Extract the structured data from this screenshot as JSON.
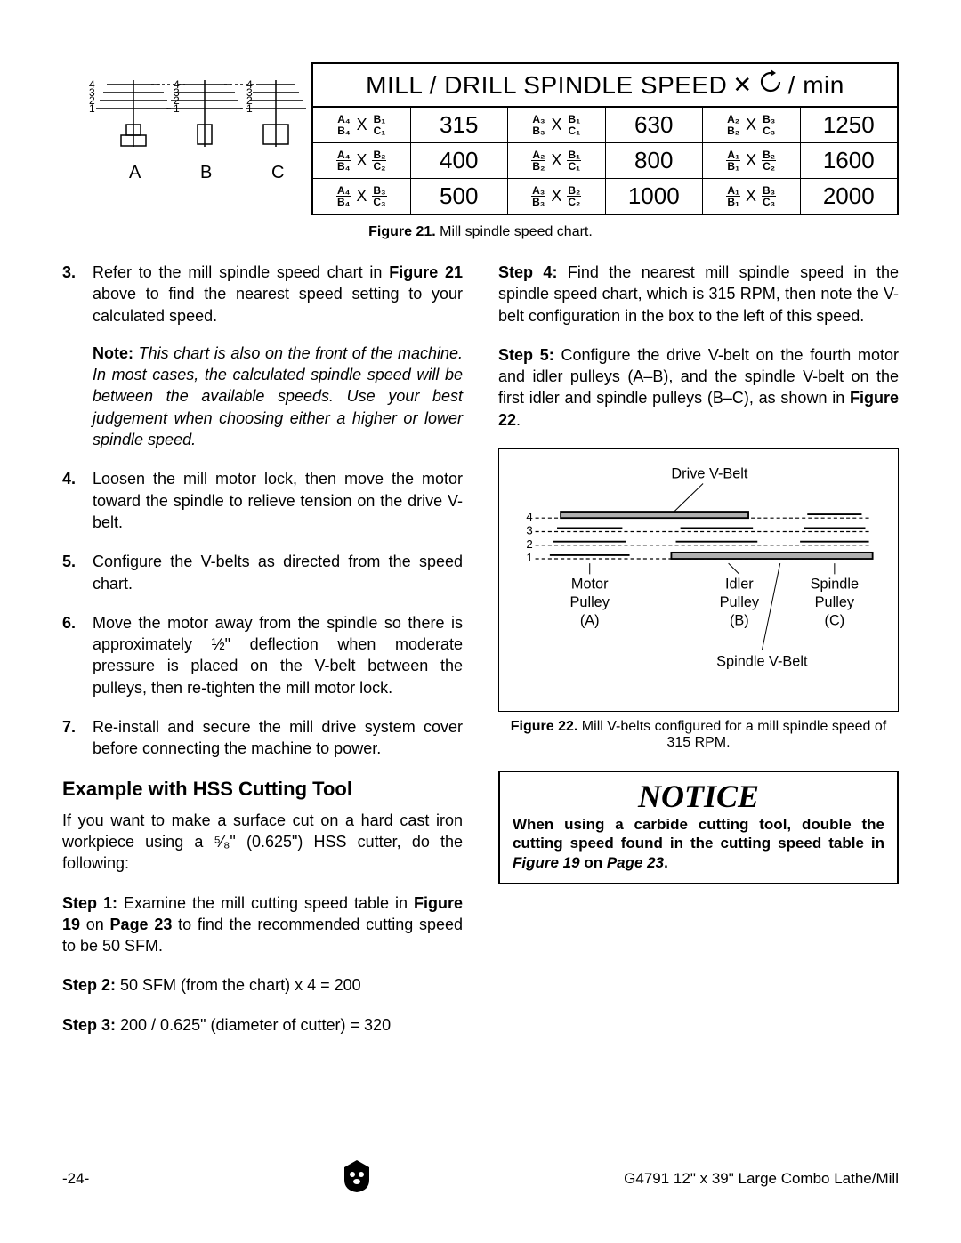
{
  "chart": {
    "header_left": "MILL / DRILL SPINDLE SPEED",
    "header_right": "/ min",
    "pulley_labels": [
      "A",
      "B",
      "C"
    ],
    "pulley_numbers": [
      "1",
      "2",
      "3",
      "4"
    ],
    "rows": [
      [
        {
          "a": "A₄",
          "b": "B₄",
          "c": "B₁",
          "d": "C₁",
          "rpm": "315"
        },
        {
          "a": "A₃",
          "b": "B₃",
          "c": "B₁",
          "d": "C₁",
          "rpm": "630"
        },
        {
          "a": "A₂",
          "b": "B₂",
          "c": "B₃",
          "d": "C₃",
          "rpm": "1250"
        }
      ],
      [
        {
          "a": "A₄",
          "b": "B₄",
          "c": "B₂",
          "d": "C₂",
          "rpm": "400"
        },
        {
          "a": "A₂",
          "b": "B₂",
          "c": "B₁",
          "d": "C₁",
          "rpm": "800"
        },
        {
          "a": "A₁",
          "b": "B₁",
          "c": "B₂",
          "d": "C₂",
          "rpm": "1600"
        }
      ],
      [
        {
          "a": "A₄",
          "b": "B₄",
          "c": "B₃",
          "d": "C₃",
          "rpm": "500"
        },
        {
          "a": "A₃",
          "b": "B₃",
          "c": "B₂",
          "d": "C₂",
          "rpm": "1000"
        },
        {
          "a": "A₁",
          "b": "B₁",
          "c": "B₃",
          "d": "C₃",
          "rpm": "2000"
        }
      ]
    ]
  },
  "fig21_caption_bold": "Figure 21.",
  "fig21_caption_rest": " Mill spindle speed chart.",
  "left_steps": [
    {
      "n": "3.",
      "html": "Refer to the mill spindle speed chart in <b>Figure 21</b> above to find the nearest speed setting to your calculated speed.",
      "note": "This chart is also on the front of the machine. In most cases, the calculated spindle speed will be between the available speeds. Use your best judgement when choosing either a higher or lower spindle speed."
    },
    {
      "n": "4.",
      "html": "Loosen the mill motor lock, then move the motor toward the spindle to relieve tension on the drive V-belt."
    },
    {
      "n": "5.",
      "html": "Configure the V-belts as directed from the speed chart."
    },
    {
      "n": "6.",
      "html": "Move the motor away from the spindle so there is approximately ½\" deflection when moderate pressure is placed on the V-belt between the pulleys, then re-tighten the mill motor lock."
    },
    {
      "n": "7.",
      "html": "Re-install and secure the mill drive system cover before connecting the machine to power."
    }
  ],
  "example_heading": "Example with HSS Cutting Tool",
  "example_intro": "If you want to make a surface cut on a hard cast iron workpiece using a ⁵⁄₈\" (0.625\") HSS cutter, do the following:",
  "example_steps": [
    "<b>Step 1:</b> Examine the mill cutting speed table in <b>Figure 19</b> on <b>Page 23</b> to find the recommended cutting speed to be 50 SFM.",
    "<b>Step 2:</b> 50 SFM (from the chart) x 4 = 200",
    "<b>Step 3:</b> 200 / 0.625\" (diameter of cutter) = 320"
  ],
  "right_paras": [
    "<b>Step 4:</b> Find the nearest mill spindle speed in the spindle speed chart, which is 315 RPM, then note the V-belt configuration in the box to the left of this speed.",
    "<b>Step 5:</b> Configure the drive V-belt on the fourth motor and idler pulleys (A–B), and the spindle V-belt on the first idler and spindle pulleys (B–C), as shown in <b>Figure 22</b>."
  ],
  "fig22": {
    "drive_label": "Drive V-Belt",
    "spindle_label": "Spindle V-Belt",
    "motor": "Motor\nPulley\n(A)",
    "idler": "Idler\nPulley\n(B)",
    "spindle": "Spindle\nPulley\n(C)",
    "nums": [
      "4",
      "3",
      "2",
      "1"
    ]
  },
  "fig22_caption_bold": "Figure 22.",
  "fig22_caption_rest": " Mill V-belts configured for a mill spindle speed of 315 RPM.",
  "notice_title": "NOTICE",
  "notice_text": "When using a carbide cutting tool, double the cutting speed found in the cutting speed table in <i>Figure 19</i> on <i>Page 23</i>.",
  "footer_left": "-24-",
  "footer_right": "G4791 12\" x 39\" Large Combo Lathe/Mill"
}
